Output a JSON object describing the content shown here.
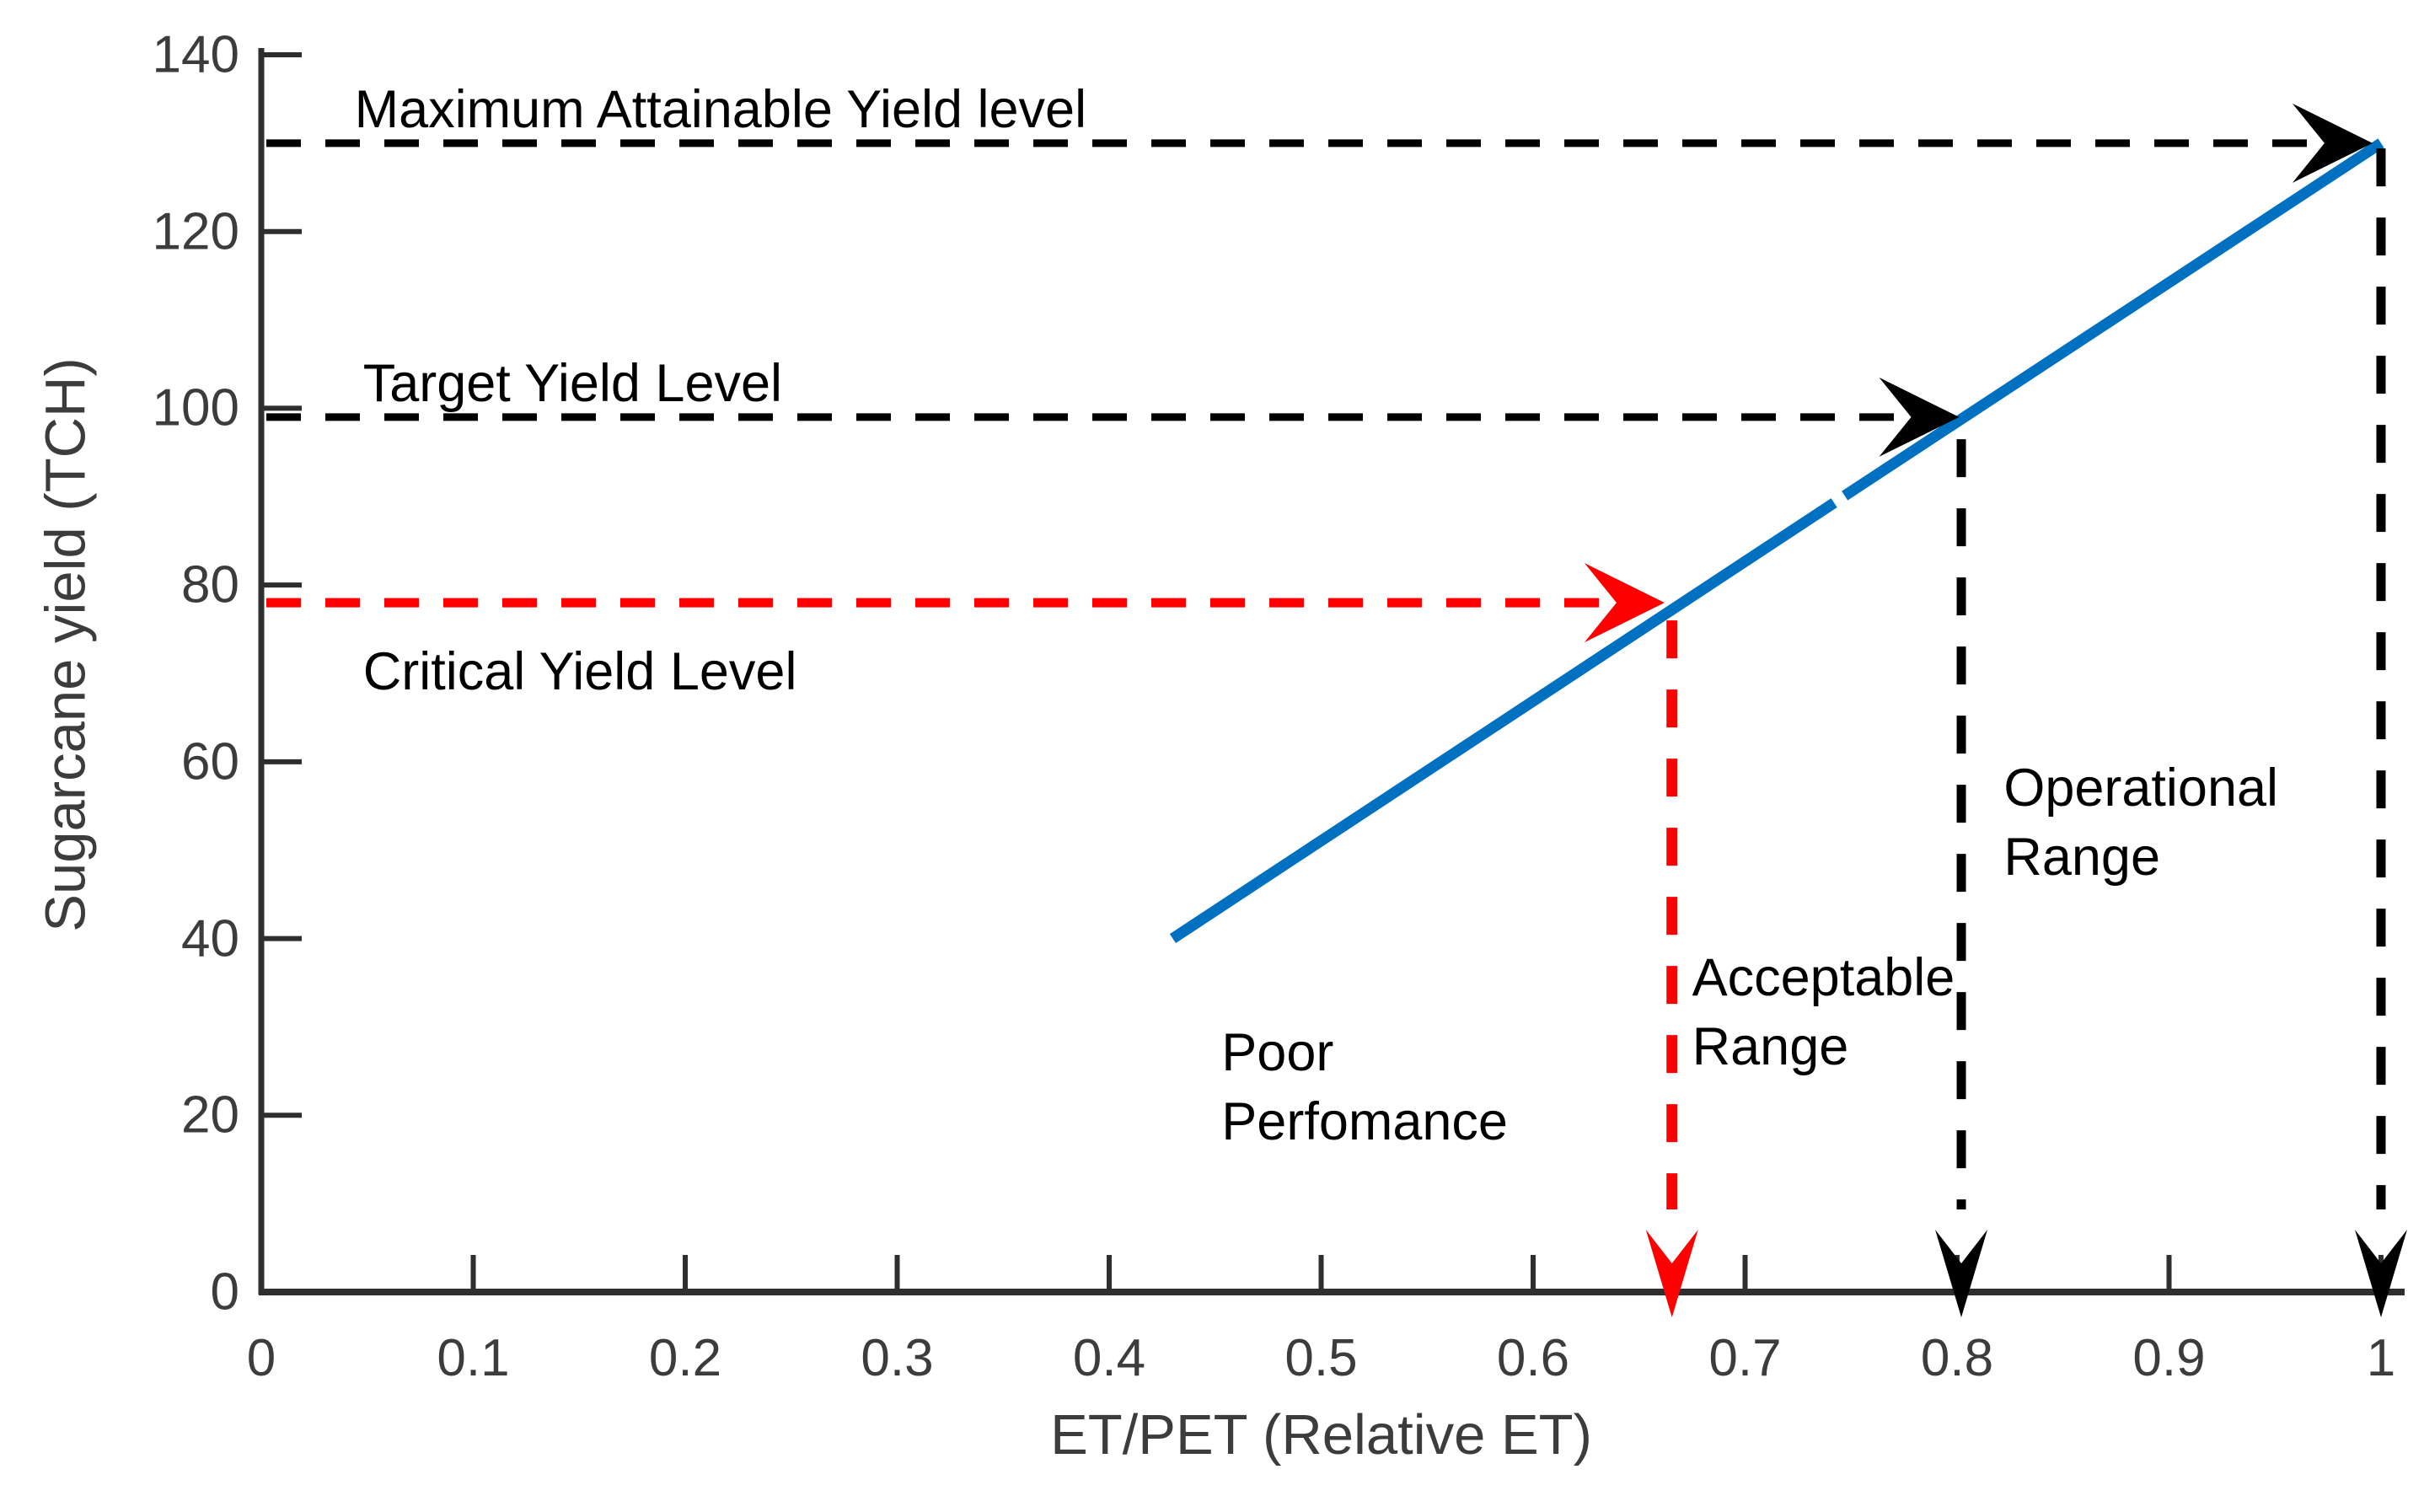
{
  "figure": {
    "background": "#ffffff",
    "axis_color": "#2e2e2e",
    "tick_text_color": "#3c3c3c",
    "annotation_text_color": "#000000"
  },
  "chart_data": {
    "type": "line",
    "title": "",
    "xlabel": "ET/PET (Relative ET)",
    "ylabel": "Sugarcane yield (TCH)",
    "xlim": [
      0,
      1
    ],
    "ylim": [
      0,
      140
    ],
    "grid": false,
    "legend": "none",
    "xticks": [
      0,
      0.1,
      0.2,
      0.3,
      0.4,
      0.5,
      0.6,
      0.7,
      0.8,
      0.9,
      1
    ],
    "xtick_labels": [
      "0",
      "0.1",
      "0.2",
      "0.3",
      "0.4",
      "0.5",
      "0.6",
      "0.7",
      "0.8",
      "0.9",
      "1"
    ],
    "yticks": [
      0,
      20,
      40,
      60,
      80,
      100,
      120,
      140
    ],
    "ytick_labels": [
      "0",
      "20",
      "40",
      "60",
      "80",
      "100",
      "120",
      "140"
    ],
    "series": [
      {
        "name": "yield-response-line",
        "color": "#0070c0",
        "style": "solid",
        "stroke_width": 13,
        "segments": [
          [
            [
              0.43,
              40
            ],
            [
              0.742,
              89.3
            ]
          ],
          [
            [
              0.747,
              90.1
            ],
            [
              1.0,
              130
            ]
          ]
        ]
      }
    ],
    "reference_lines": [
      {
        "id": "maximum",
        "label": "Maximum Attainable Yield level",
        "y": 130,
        "arrow_x": 0.996,
        "drop_x": 1.0,
        "drop_from_y": 129.4,
        "color": "#000000",
        "label_x": 0.044,
        "label_side": "above"
      },
      {
        "id": "target",
        "label": "Target Yield Level",
        "y": 99,
        "arrow_x": 0.801,
        "drop_x": 0.802,
        "drop_from_y": 96.5,
        "color": "#000000",
        "label_x": 0.048,
        "label_side": "above"
      },
      {
        "id": "critical",
        "label": "Critical Yield Level",
        "y": 78,
        "arrow_x": 0.662,
        "drop_x": 0.6655,
        "drop_from_y": 76.0,
        "color": "#fe0000",
        "label_x": 0.048,
        "label_side": "below"
      }
    ],
    "region_labels": [
      {
        "id": "poor",
        "lines": [
          "Poor",
          "Perfomance"
        ],
        "x": 0.453,
        "y": 31
      },
      {
        "id": "acceptable",
        "lines": [
          "Acceptable",
          "Range"
        ],
        "x": 0.675,
        "y": 39.5
      },
      {
        "id": "operational",
        "lines": [
          "Operational",
          "Range"
        ],
        "x": 0.822,
        "y": 60.9
      }
    ]
  }
}
